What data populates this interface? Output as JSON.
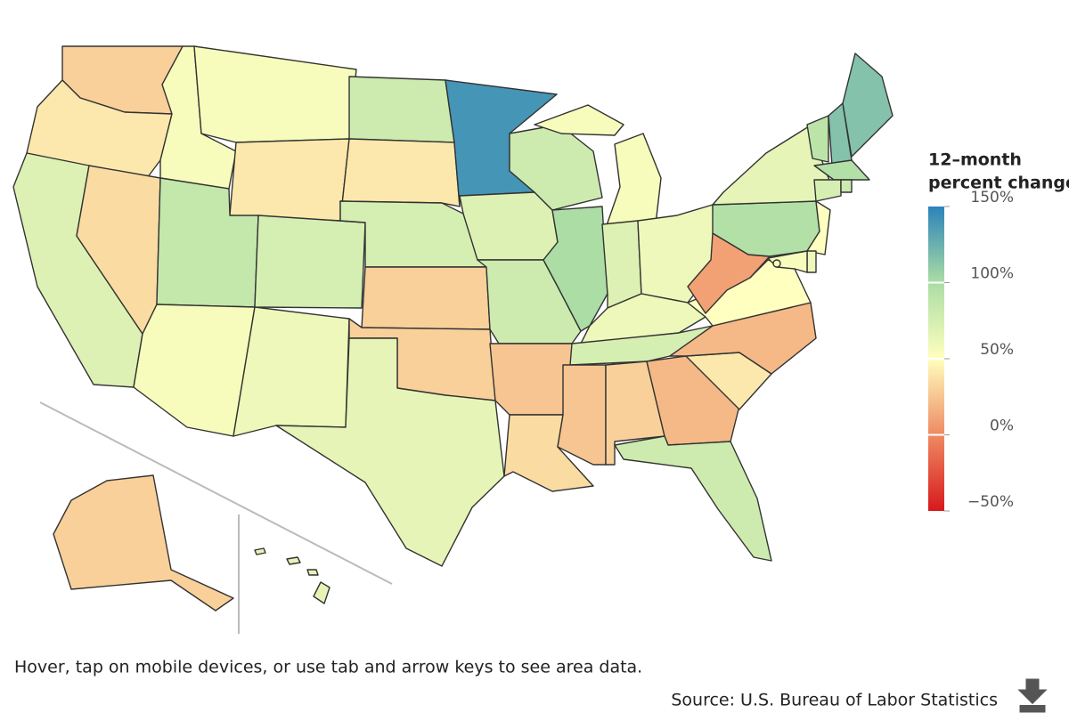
{
  "chart_data": {
    "type": "choropleth",
    "values": [
      30,
      40,
      70,
      35,
      55,
      55,
      40,
      85,
      55,
      75,
      60,
      80,
      40,
      75,
      30,
      30,
      65,
      140,
      70,
      80,
      25,
      35,
      80,
      100,
      55,
      70,
      60,
      60,
      75,
      25,
      30,
      20,
      80,
      40,
      20,
      50,
      10,
      95,
      65,
      90,
      115,
      115,
      95,
      75,
      80,
      50,
      60,
      55,
      55,
      30,
      65
    ],
    "legend_title": [
      "12–month",
      "percent change"
    ],
    "ylim": [
      -50,
      150
    ],
    "yticks": [
      {
        "value": -50,
        "label": "−50%"
      },
      {
        "value": 0,
        "label": "0%"
      },
      {
        "value": 50,
        "label": "50%"
      },
      {
        "value": 100,
        "label": "100%"
      },
      {
        "value": 150,
        "label": "150%"
      }
    ],
    "colors": [
      "#d7191c",
      "#ef8a62",
      "#ffffbf",
      "#abdda4",
      "#2b83ba"
    ]
  },
  "note": "Hover, tap on mobile devices, or use tab and arrow keys to see area data.",
  "source": "Source: U.S. Bureau of Labor Statistics"
}
